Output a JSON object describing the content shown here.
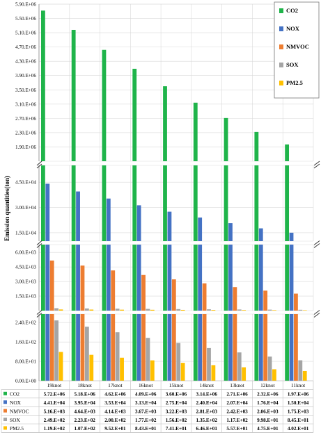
{
  "chart_data": {
    "type": "bar",
    "ylabel": "Emission quantities(ton)",
    "categories": [
      "19knot",
      "18knot",
      "17knot",
      "16knot",
      "15knot",
      "14knot",
      "13knot",
      "12knot",
      "11knot"
    ],
    "series": [
      {
        "name": "CO2",
        "color": "#1fb44a",
        "values": [
          5720000,
          5180000,
          4620000,
          4090000,
          3600000,
          3140000,
          2710000,
          2320000,
          1970000
        ],
        "labels": [
          "5.72.E+06",
          "5.18.E+06",
          "4.62.E+06",
          "4.09.E+06",
          "3.60.E+06",
          "3.14.E+06",
          "2.71.E+06",
          "2.32.E+06",
          "1.97.E+06"
        ]
      },
      {
        "name": "NOX",
        "color": "#4472c4",
        "values": [
          44100,
          39500,
          35300,
          31300,
          27500,
          24000,
          20700,
          17600,
          15000
        ],
        "labels": [
          "4.41.E+04",
          "3.95.E+04",
          "3.53.E+04",
          "3.13.E+04",
          "2.75.E+04",
          "2.40.E+04",
          "2.07.E+04",
          "1.76.E+04",
          "1.50.E+04"
        ]
      },
      {
        "name": "NMVOC",
        "color": "#ed7d31",
        "values": [
          5160,
          4640,
          4140,
          3670,
          3220,
          2810,
          2420,
          2060,
          1750
        ],
        "labels": [
          "5.16.E+03",
          "4.64.E+03",
          "4.14.E+03",
          "3.67.E+03",
          "3.22.E+03",
          "2.81.E+03",
          "2.42.E+03",
          "2.06.E+03",
          "1.75.E+03"
        ]
      },
      {
        "name": "SOX",
        "color": "#a5a5a5",
        "values": [
          249,
          223,
          200,
          177,
          156,
          135,
          117,
          99.8,
          84.5
        ],
        "labels": [
          "2.49.E+02",
          "2.23.E+02",
          "2.00.E+02",
          "1.77.E+02",
          "1.56.E+02",
          "1.35.E+02",
          "1.17.E+02",
          "9.98.E+01",
          "8.45.E+01"
        ]
      },
      {
        "name": "PM2.5",
        "color": "#ffc000",
        "values": [
          119,
          107,
          95.2,
          84.3,
          74.1,
          64.6,
          55.7,
          47.5,
          40.2
        ],
        "labels": [
          "1.19.E+02",
          "1.07.E+02",
          "9.52.E+01",
          "8.43.E+01",
          "7.41.E+01",
          "6.46.E+01",
          "5.57.E+01",
          "4.75.E+01",
          "4.02.E+01"
        ]
      }
    ],
    "panels": [
      {
        "ylim": [
          1500000,
          5900000
        ],
        "ticks": [
          1900000,
          2300000,
          2700000,
          3100000,
          3500000,
          3900000,
          4300000,
          4700000,
          5100000,
          5500000,
          5900000
        ],
        "tick_labels": [
          "1.90.E+06",
          "2.30.E+06",
          "2.70.E+06",
          "3.10.E+06",
          "3.50.E+06",
          "3.90.E+06",
          "4.30.E+06",
          "4.70.E+06",
          "5.10.E+06",
          "5.50.E+06",
          "5.90.E+06"
        ]
      },
      {
        "ylim": [
          10000,
          55000
        ],
        "ticks": [
          15000,
          30000,
          45000
        ],
        "tick_labels": [
          "1.50.E+04",
          "3.00.E+04",
          "4.50.E+04"
        ]
      },
      {
        "ylim": [
          0,
          6800
        ],
        "ticks": [
          1500,
          3000,
          4500,
          6000
        ],
        "tick_labels": [
          "1.50.E+03",
          "3.00.E+03",
          "4.50.E+03",
          "6.00.E+03"
        ]
      },
      {
        "ylim": [
          0,
          275
        ],
        "ticks": [
          0,
          80,
          160,
          240
        ],
        "tick_labels": [
          "0.00.E+00",
          "8.00.E+01",
          "1.60.E+02",
          "2.40.E+02"
        ]
      }
    ],
    "legend_position": "top-right",
    "grid": true
  }
}
